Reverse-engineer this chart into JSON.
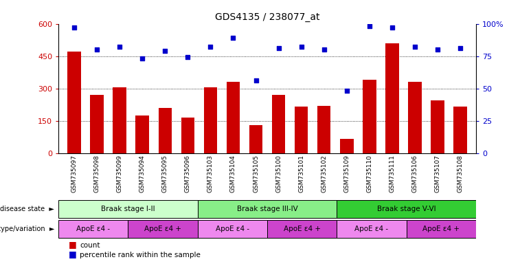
{
  "title": "GDS4135 / 238077_at",
  "samples": [
    "GSM735097",
    "GSM735098",
    "GSM735099",
    "GSM735094",
    "GSM735095",
    "GSM735096",
    "GSM735103",
    "GSM735104",
    "GSM735105",
    "GSM735100",
    "GSM735101",
    "GSM735102",
    "GSM735109",
    "GSM735110",
    "GSM735111",
    "GSM735106",
    "GSM735107",
    "GSM735108"
  ],
  "counts": [
    470,
    270,
    305,
    175,
    210,
    165,
    305,
    330,
    130,
    270,
    215,
    220,
    65,
    340,
    510,
    330,
    245,
    215
  ],
  "percentiles": [
    97,
    80,
    82,
    73,
    79,
    74,
    82,
    89,
    56,
    81,
    82,
    80,
    48,
    98,
    97,
    82,
    80,
    81
  ],
  "bar_color": "#cc0000",
  "dot_color": "#0000cc",
  "ylim_left": [
    0,
    600
  ],
  "ylim_right": [
    0,
    100
  ],
  "yticks_left": [
    0,
    150,
    300,
    450,
    600
  ],
  "yticks_right": [
    0,
    25,
    50,
    75,
    100
  ],
  "yticklabels_right": [
    "0",
    "25",
    "50",
    "75",
    "100%"
  ],
  "grid_values": [
    150,
    300,
    450
  ],
  "disease_states": [
    {
      "label": "Braak stage I-II",
      "start": 0,
      "end": 6,
      "color": "#ccffcc"
    },
    {
      "label": "Braak stage III-IV",
      "start": 6,
      "end": 12,
      "color": "#88ee88"
    },
    {
      "label": "Braak stage V-VI",
      "start": 12,
      "end": 18,
      "color": "#33cc33"
    }
  ],
  "genotypes": [
    {
      "label": "ApoE ε4 -",
      "start": 0,
      "end": 3,
      "color": "#ee88ee"
    },
    {
      "label": "ApoE ε4 +",
      "start": 3,
      "end": 6,
      "color": "#cc44cc"
    },
    {
      "label": "ApoE ε4 -",
      "start": 6,
      "end": 9,
      "color": "#ee88ee"
    },
    {
      "label": "ApoE ε4 +",
      "start": 9,
      "end": 12,
      "color": "#cc44cc"
    },
    {
      "label": "ApoE ε4 -",
      "start": 12,
      "end": 15,
      "color": "#ee88ee"
    },
    {
      "label": "ApoE ε4 +",
      "start": 15,
      "end": 18,
      "color": "#cc44cc"
    }
  ],
  "legend_count_label": "count",
  "legend_pct_label": "percentile rank within the sample",
  "disease_label": "disease state",
  "genotype_label": "genotype/variation",
  "arrow_char": "►",
  "bg_color": "#ffffff"
}
